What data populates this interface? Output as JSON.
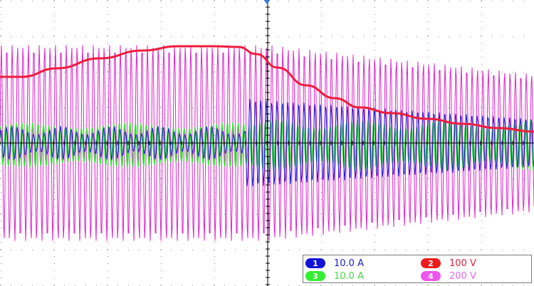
{
  "scope": {
    "trigger_marker_color": "#3a7bd5",
    "grid_color": "#8c8c8c",
    "background": "#ffffff"
  },
  "channels": [
    {
      "number": "1",
      "scale": "10.0 A",
      "color": "#1a1acc",
      "text_color": "#1a1acc",
      "badge_color": "#1414d8"
    },
    {
      "number": "2",
      "scale": "100 V",
      "color": "#ee1c3a",
      "text_color": "#e02040",
      "badge_color": "#ee1c1c"
    },
    {
      "number": "3",
      "scale": "10.0 A",
      "color": "#33ee33",
      "text_color": "#44dd44",
      "badge_color": "#33ee33"
    },
    {
      "number": "4",
      "scale": "200 V",
      "color": "#dd22cc",
      "text_color": "#ee66ee",
      "badge_color": "#ee55ee"
    }
  ]
}
